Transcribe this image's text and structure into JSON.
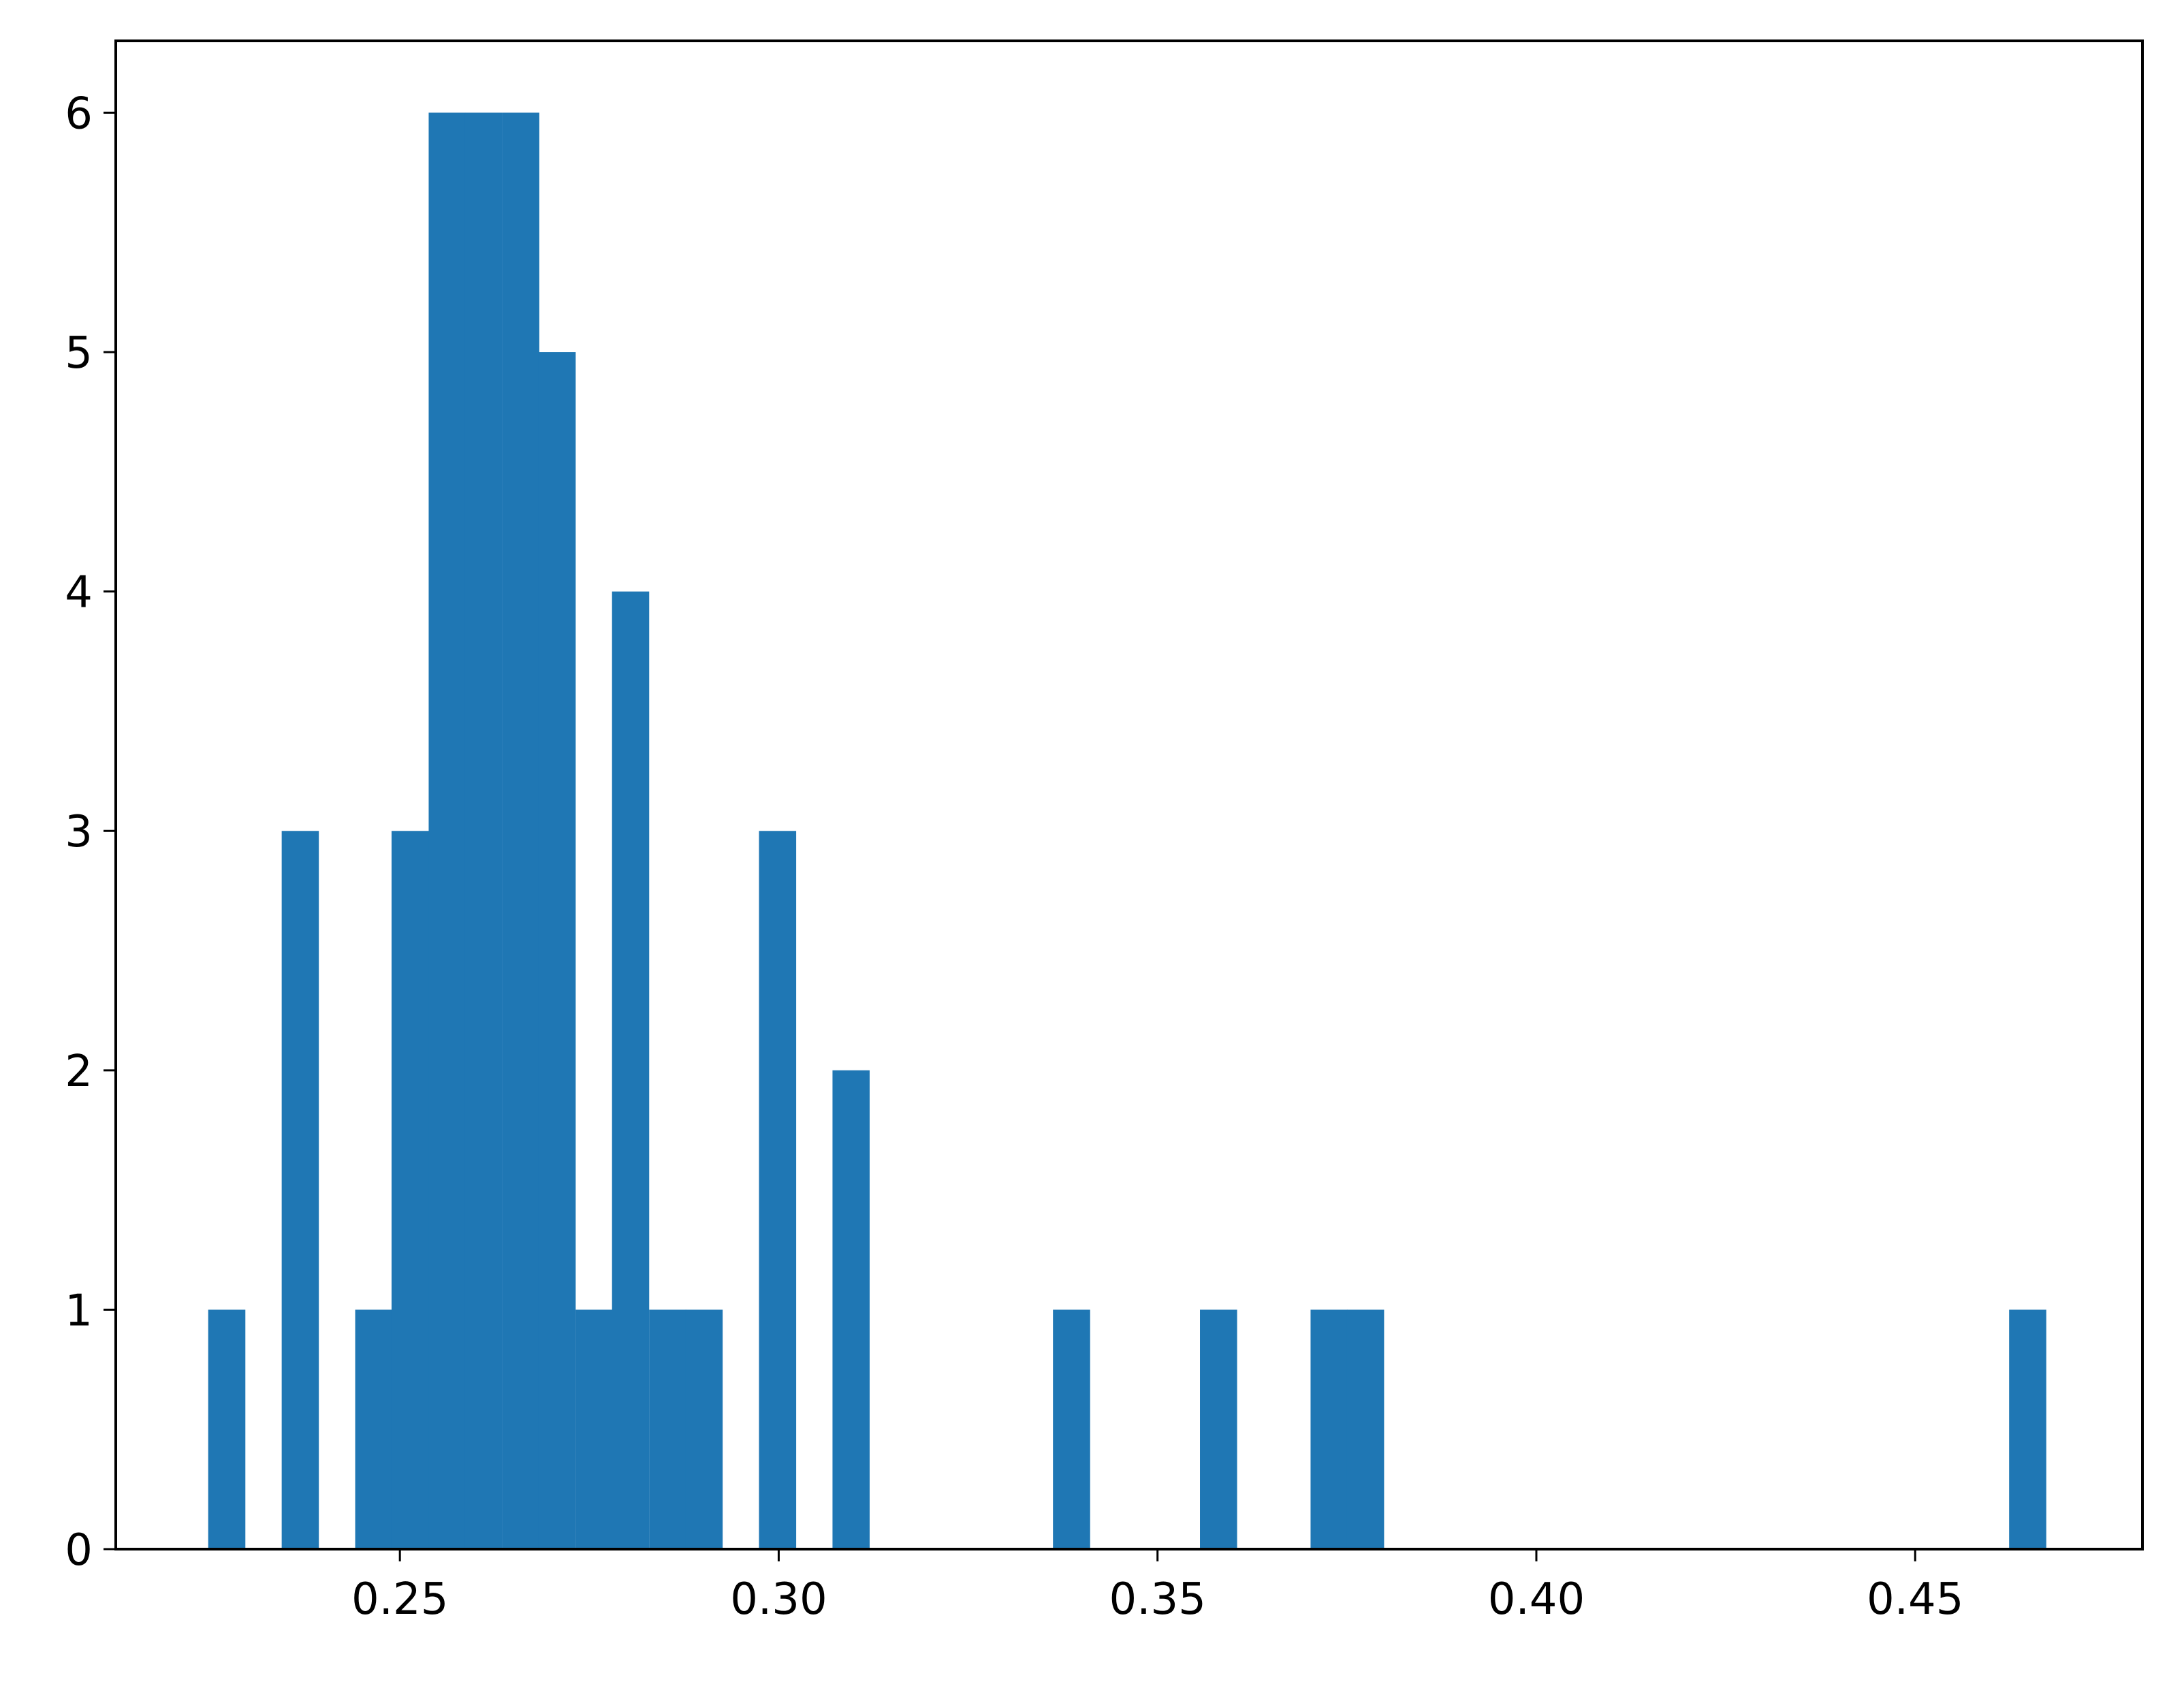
{
  "chart_data": {
    "type": "bar",
    "subtype": "histogram",
    "title": "",
    "xlabel": "",
    "ylabel": "",
    "xlim": [
      0.2125,
      0.48
    ],
    "ylim": [
      0,
      6.3
    ],
    "bin_width": 0.00485,
    "bins": [
      {
        "x0": 0.2247,
        "count": 1
      },
      {
        "x0": 0.2344,
        "count": 3
      },
      {
        "x0": 0.2441,
        "count": 1
      },
      {
        "x0": 0.2489,
        "count": 3
      },
      {
        "x0": 0.2538,
        "count": 6
      },
      {
        "x0": 0.2586,
        "count": 6
      },
      {
        "x0": 0.2635,
        "count": 6
      },
      {
        "x0": 0.2683,
        "count": 5
      },
      {
        "x0": 0.2732,
        "count": 1
      },
      {
        "x0": 0.278,
        "count": 4
      },
      {
        "x0": 0.2829,
        "count": 1
      },
      {
        "x0": 0.2877,
        "count": 1
      },
      {
        "x0": 0.2974,
        "count": 3
      },
      {
        "x0": 0.3071,
        "count": 2
      },
      {
        "x0": 0.3362,
        "count": 1
      },
      {
        "x0": 0.3556,
        "count": 1
      },
      {
        "x0": 0.3702,
        "count": 1
      },
      {
        "x0": 0.375,
        "count": 1
      },
      {
        "x0": 0.4624,
        "count": 1
      }
    ],
    "xticks": [
      0.25,
      0.3,
      0.35,
      0.4,
      0.45
    ],
    "xtick_labels": [
      "0.25",
      "0.30",
      "0.35",
      "0.40",
      "0.45"
    ],
    "yticks": [
      0,
      1,
      2,
      3,
      4,
      5,
      6
    ],
    "ytick_labels": [
      "0",
      "1",
      "2",
      "3",
      "4",
      "5",
      "6"
    ],
    "grid": false,
    "legend": "none",
    "colors": {
      "bar": "#1f77b4",
      "axes": "#000000",
      "background": "#ffffff"
    }
  }
}
